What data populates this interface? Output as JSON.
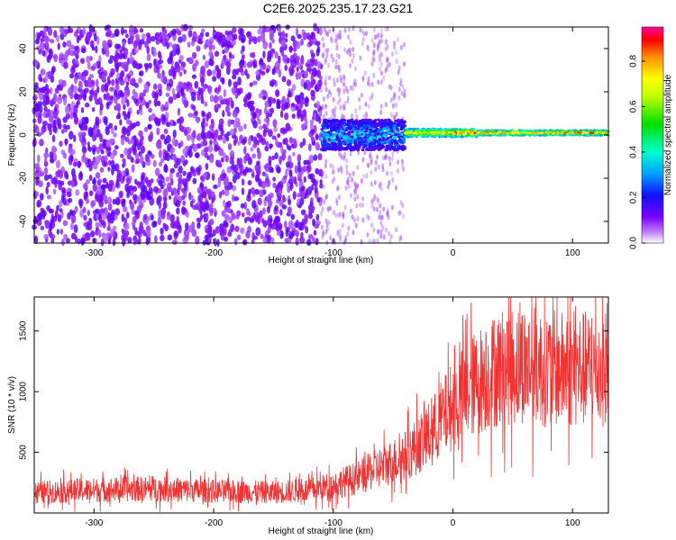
{
  "title": "C2E6.2025.235.17.23.G21",
  "chart_data": [
    {
      "type": "heatmap",
      "xlabel": "Height of straight line (km)",
      "ylabel": "Frequency (Hz)",
      "xlim": [
        -350,
        130
      ],
      "ylim": [
        -50,
        50
      ],
      "xticks": [
        -300,
        -200,
        -100,
        0,
        100
      ],
      "yticks": [
        -40,
        -20,
        0,
        20,
        40
      ],
      "colorbar": {
        "label": "Normalized spectral amplitude",
        "range": [
          0.0,
          0.95
        ],
        "ticks": [
          0.0,
          0.2,
          0.4,
          0.6,
          0.8
        ]
      },
      "regions": [
        {
          "x_range": [
            -350,
            -110
          ],
          "freq_range": [
            -50,
            50
          ],
          "amplitude": 0.05,
          "description": "broadband noise"
        },
        {
          "x_range": [
            -110,
            -40
          ],
          "freq_range": [
            -10,
            8
          ],
          "amplitude": 0.3,
          "description": "emerging tone"
        },
        {
          "x_range": [
            -40,
            130
          ],
          "freq_range": [
            -1,
            3
          ],
          "amplitude": 0.8,
          "description": "narrow carrier line"
        }
      ]
    },
    {
      "type": "line",
      "xlabel": "Height of straight line (km)",
      "ylabel": "SNR (10 * v/v)",
      "xlim": [
        -350,
        130
      ],
      "ylim": [
        0,
        1780
      ],
      "xticks": [
        -300,
        -200,
        -100,
        0,
        100
      ],
      "yticks": [
        500,
        1000,
        1500
      ],
      "color": "#f03232",
      "series": [
        {
          "name": "SNR",
          "x": [
            -350,
            -300,
            -250,
            -200,
            -150,
            -120,
            -100,
            -80,
            -60,
            -40,
            -20,
            0,
            20,
            40,
            60,
            80,
            100,
            130
          ],
          "values": [
            170,
            190,
            200,
            180,
            170,
            190,
            230,
            290,
            380,
            470,
            640,
            890,
            1080,
            1200,
            1230,
            1190,
            1180,
            1200
          ]
        }
      ]
    }
  ]
}
